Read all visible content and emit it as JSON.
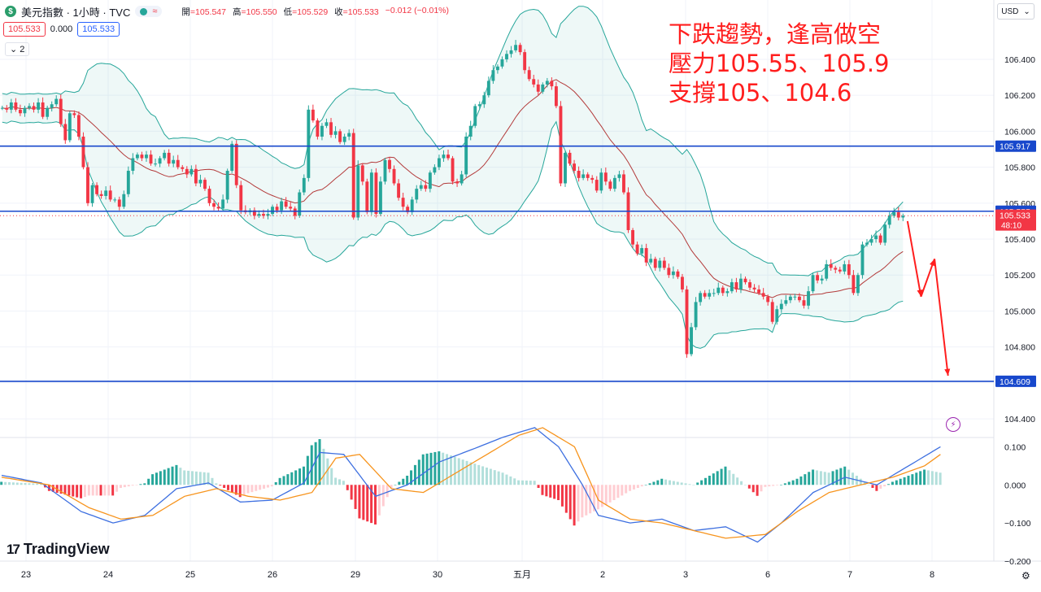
{
  "header": {
    "symbol_title": "美元指數 · 1小時 · TVC",
    "ohlc": [
      {
        "label": "開",
        "value": "=105.547"
      },
      {
        "label": "高",
        "value": "=105.550"
      },
      {
        "label": "低",
        "value": "=105.529"
      },
      {
        "label": "收",
        "value": "=105.533"
      },
      {
        "label": "",
        "value": "−0.012 (−0.01%)"
      }
    ],
    "sell_price": "105.533",
    "spread": "0.000",
    "buy_price": "105.533",
    "indicators_count": "2",
    "currency": "USD"
  },
  "annotation": [
    "下跌趨勢，逢高做空",
    "壓力105.55、105.9",
    "支撐105、104.6"
  ],
  "brand": "TradingView",
  "colors": {
    "up": "#26a69a",
    "down": "#f23645",
    "line": "#1848cc",
    "band": "#26a69a",
    "ma": "#b33a3a",
    "arrow": "#ff1e1e",
    "macd": "#3d6fe0",
    "signal": "#f7941d"
  },
  "chart_data": [
    {
      "type": "candlestick",
      "timeframe": "1H",
      "ylim": [
        104.31,
        106.73
      ],
      "y_ticks": [
        "106.400",
        "106.200",
        "106.000",
        "105.800",
        "105.600",
        "105.400",
        "105.200",
        "105.000",
        "104.800",
        "104.600",
        "104.400"
      ],
      "x_labels": [
        "23",
        "24",
        "25",
        "26",
        "29",
        "30",
        "五月",
        "2",
        "3",
        "6",
        "7",
        "8"
      ],
      "series_close": [
        [
          0,
          106.13
        ],
        [
          1,
          106.12
        ],
        [
          2,
          106.16
        ],
        [
          3,
          106.12
        ],
        [
          4,
          106.1
        ],
        [
          5,
          106.13
        ],
        [
          6,
          106.14
        ],
        [
          7,
          106.12
        ],
        [
          8,
          106.16
        ],
        [
          9,
          106.08
        ],
        [
          10,
          106.13
        ],
        [
          11,
          106.15
        ],
        [
          12,
          106.18
        ],
        [
          13,
          106.04
        ],
        [
          14,
          105.95
        ],
        [
          15,
          106.1
        ],
        [
          16,
          106.09
        ],
        [
          17,
          105.97
        ],
        [
          18,
          105.8
        ],
        [
          19,
          105.6
        ],
        [
          20,
          105.7
        ],
        [
          21,
          105.65
        ],
        [
          22,
          105.64
        ],
        [
          23,
          105.67
        ],
        [
          24,
          105.62
        ],
        [
          25,
          105.62
        ],
        [
          26,
          105.58
        ],
        [
          27,
          105.65
        ],
        [
          28,
          105.78
        ],
        [
          29,
          105.85
        ],
        [
          30,
          105.87
        ],
        [
          31,
          105.85
        ],
        [
          32,
          105.87
        ],
        [
          33,
          105.82
        ],
        [
          34,
          105.82
        ],
        [
          35,
          105.85
        ],
        [
          36,
          105.88
        ],
        [
          37,
          105.82
        ],
        [
          38,
          105.84
        ],
        [
          39,
          105.8
        ],
        [
          40,
          105.79
        ],
        [
          41,
          105.76
        ],
        [
          42,
          105.79
        ],
        [
          43,
          105.71
        ],
        [
          44,
          105.73
        ],
        [
          45,
          105.68
        ],
        [
          46,
          105.6
        ],
        [
          47,
          105.58
        ],
        [
          48,
          105.57
        ],
        [
          49,
          105.62
        ],
        [
          50,
          105.78
        ],
        [
          51,
          105.93
        ],
        [
          52,
          105.7
        ],
        [
          53,
          105.56
        ],
        [
          54,
          105.55
        ],
        [
          55,
          105.56
        ],
        [
          56,
          105.53
        ],
        [
          57,
          105.54
        ],
        [
          58,
          105.53
        ],
        [
          59,
          105.54
        ],
        [
          60,
          105.58
        ],
        [
          61,
          105.56
        ],
        [
          62,
          105.61
        ],
        [
          63,
          105.58
        ],
        [
          64,
          105.57
        ],
        [
          65,
          105.53
        ],
        [
          66,
          105.66
        ],
        [
          67,
          105.74
        ],
        [
          68,
          106.12
        ],
        [
          69,
          106.06
        ],
        [
          70,
          105.97
        ],
        [
          71,
          106.03
        ],
        [
          72,
          106.05
        ],
        [
          73,
          105.98
        ],
        [
          74,
          106.0
        ],
        [
          75,
          105.94
        ],
        [
          76,
          105.97
        ],
        [
          77,
          105.99
        ],
        [
          78,
          105.52
        ],
        [
          79,
          105.81
        ],
        [
          80,
          105.72
        ],
        [
          81,
          105.55
        ],
        [
          82,
          105.77
        ],
        [
          83,
          105.54
        ],
        [
          84,
          105.72
        ],
        [
          85,
          105.84
        ],
        [
          86,
          105.79
        ],
        [
          87,
          105.71
        ],
        [
          88,
          105.63
        ],
        [
          89,
          105.58
        ],
        [
          90,
          105.55
        ],
        [
          91,
          105.62
        ],
        [
          92,
          105.68
        ],
        [
          93,
          105.7
        ],
        [
          94,
          105.68
        ],
        [
          95,
          105.77
        ],
        [
          96,
          105.8
        ],
        [
          97,
          105.85
        ],
        [
          98,
          105.87
        ],
        [
          99,
          105.85
        ],
        [
          100,
          105.72
        ],
        [
          101,
          105.71
        ],
        [
          102,
          105.76
        ],
        [
          103,
          105.97
        ],
        [
          104,
          106.03
        ],
        [
          105,
          106.14
        ],
        [
          106,
          106.15
        ],
        [
          107,
          106.2
        ],
        [
          108,
          106.28
        ],
        [
          109,
          106.34
        ],
        [
          110,
          106.36
        ],
        [
          111,
          106.4
        ],
        [
          112,
          106.43
        ],
        [
          113,
          106.45
        ],
        [
          114,
          106.48
        ],
        [
          115,
          106.44
        ],
        [
          116,
          106.34
        ],
        [
          117,
          106.29
        ],
        [
          118,
          106.26
        ],
        [
          119,
          106.22
        ],
        [
          120,
          106.26
        ],
        [
          121,
          106.28
        ],
        [
          122,
          106.25
        ],
        [
          123,
          106.14
        ],
        [
          124,
          105.71
        ],
        [
          125,
          105.88
        ],
        [
          126,
          105.82
        ],
        [
          127,
          105.78
        ],
        [
          128,
          105.74
        ],
        [
          129,
          105.76
        ],
        [
          130,
          105.74
        ],
        [
          131,
          105.73
        ],
        [
          132,
          105.67
        ],
        [
          133,
          105.77
        ],
        [
          134,
          105.72
        ],
        [
          135,
          105.68
        ],
        [
          136,
          105.74
        ],
        [
          137,
          105.76
        ],
        [
          138,
          105.66
        ],
        [
          139,
          105.45
        ],
        [
          140,
          105.37
        ],
        [
          141,
          105.32
        ],
        [
          142,
          105.35
        ],
        [
          143,
          105.27
        ],
        [
          144,
          105.29
        ],
        [
          145,
          105.24
        ],
        [
          146,
          105.28
        ],
        [
          147,
          105.24
        ],
        [
          148,
          105.2
        ],
        [
          149,
          105.22
        ],
        [
          150,
          105.19
        ],
        [
          151,
          105.12
        ],
        [
          152,
          104.76
        ],
        [
          153,
          104.91
        ],
        [
          154,
          105.05
        ],
        [
          155,
          105.1
        ],
        [
          156,
          105.08
        ],
        [
          157,
          105.1
        ],
        [
          158,
          105.1
        ],
        [
          159,
          105.13
        ],
        [
          160,
          105.1
        ],
        [
          161,
          105.11
        ],
        [
          162,
          105.16
        ],
        [
          163,
          105.12
        ],
        [
          164,
          105.18
        ],
        [
          165,
          105.16
        ],
        [
          166,
          105.13
        ],
        [
          167,
          105.12
        ],
        [
          168,
          105.1
        ],
        [
          169,
          105.08
        ],
        [
          170,
          105.05
        ],
        [
          171,
          104.94
        ],
        [
          172,
          105.01
        ],
        [
          173,
          105.04
        ],
        [
          174,
          105.06
        ],
        [
          175,
          105.08
        ],
        [
          176,
          105.08
        ],
        [
          177,
          105.06
        ],
        [
          178,
          105.03
        ],
        [
          179,
          105.11
        ],
        [
          180,
          105.2
        ],
        [
          181,
          105.17
        ],
        [
          182,
          105.18
        ],
        [
          183,
          105.26
        ],
        [
          184,
          105.24
        ],
        [
          185,
          105.23
        ],
        [
          186,
          105.22
        ],
        [
          187,
          105.26
        ],
        [
          188,
          105.2
        ],
        [
          189,
          105.1
        ],
        [
          190,
          105.2
        ],
        [
          191,
          105.37
        ],
        [
          192,
          105.38
        ],
        [
          193,
          105.4
        ],
        [
          194,
          105.42
        ],
        [
          195,
          105.38
        ],
        [
          196,
          105.48
        ],
        [
          197,
          105.53
        ],
        [
          198,
          105.55
        ],
        [
          199,
          105.52
        ],
        [
          200,
          105.53
        ]
      ],
      "horizontal_levels": [
        105.917,
        105.555,
        104.609
      ],
      "price_labels": [
        {
          "value": "105.917",
          "color": "#1848cc"
        },
        {
          "value": "105.555",
          "color": "#1848cc"
        },
        {
          "value": "105.533",
          "color": "#f23645"
        },
        {
          "value": "104.609",
          "color": "#1848cc"
        }
      ],
      "countdown": "48:10",
      "overlays": [
        "bollinger bands",
        "moving average"
      ],
      "annotation_arrows": [
        {
          "from": [
            201,
            105.5
          ],
          "to": [
            204,
            105.08
          ]
        },
        {
          "from": [
            204,
            105.08
          ],
          "to": [
            207,
            105.29
          ]
        },
        {
          "from": [
            207,
            105.29
          ],
          "to": [
            210,
            104.64
          ]
        }
      ]
    },
    {
      "type": "macd",
      "ylim": [
        -0.2,
        0.12
      ],
      "y_ticks": [
        "0.100",
        "0.000",
        "−0.100",
        "−0.200"
      ],
      "macd_line": [
        [
          0,
          0.025
        ],
        [
          10,
          0.005
        ],
        [
          20,
          -0.07
        ],
        [
          28,
          -0.1
        ],
        [
          36,
          -0.08
        ],
        [
          44,
          -0.01
        ],
        [
          52,
          0.005
        ],
        [
          60,
          -0.045
        ],
        [
          68,
          -0.04
        ],
        [
          76,
          0.005
        ],
        [
          80,
          0.085
        ],
        [
          86,
          0.08
        ],
        [
          94,
          -0.03
        ],
        [
          102,
          0.0
        ],
        [
          110,
          0.06
        ],
        [
          120,
          0.1
        ],
        [
          126,
          0.125
        ],
        [
          134,
          0.15
        ],
        [
          140,
          0.1
        ],
        [
          146,
          0.0
        ],
        [
          150,
          -0.08
        ],
        [
          158,
          -0.1
        ],
        [
          166,
          -0.09
        ],
        [
          174,
          -0.12
        ],
        [
          182,
          -0.11
        ],
        [
          190,
          -0.15
        ],
        [
          196,
          -0.1
        ],
        [
          204,
          -0.02
        ],
        [
          212,
          0.02
        ],
        [
          220,
          0.0
        ],
        [
          228,
          0.05
        ],
        [
          236,
          0.1
        ]
      ],
      "signal_line": [
        [
          0,
          0.02
        ],
        [
          12,
          0.0
        ],
        [
          22,
          -0.06
        ],
        [
          30,
          -0.09
        ],
        [
          38,
          -0.08
        ],
        [
          46,
          -0.03
        ],
        [
          54,
          -0.01
        ],
        [
          62,
          -0.03
        ],
        [
          70,
          -0.04
        ],
        [
          78,
          -0.02
        ],
        [
          84,
          0.07
        ],
        [
          90,
          0.08
        ],
        [
          98,
          -0.01
        ],
        [
          106,
          -0.02
        ],
        [
          114,
          0.03
        ],
        [
          122,
          0.08
        ],
        [
          130,
          0.13
        ],
        [
          136,
          0.15
        ],
        [
          144,
          0.1
        ],
        [
          150,
          -0.04
        ],
        [
          158,
          -0.09
        ],
        [
          166,
          -0.1
        ],
        [
          174,
          -0.12
        ],
        [
          182,
          -0.14
        ],
        [
          192,
          -0.13
        ],
        [
          200,
          -0.07
        ],
        [
          208,
          -0.02
        ],
        [
          216,
          0.0
        ],
        [
          224,
          0.02
        ],
        [
          232,
          0.05
        ],
        [
          236,
          0.08
        ]
      ]
    }
  ]
}
